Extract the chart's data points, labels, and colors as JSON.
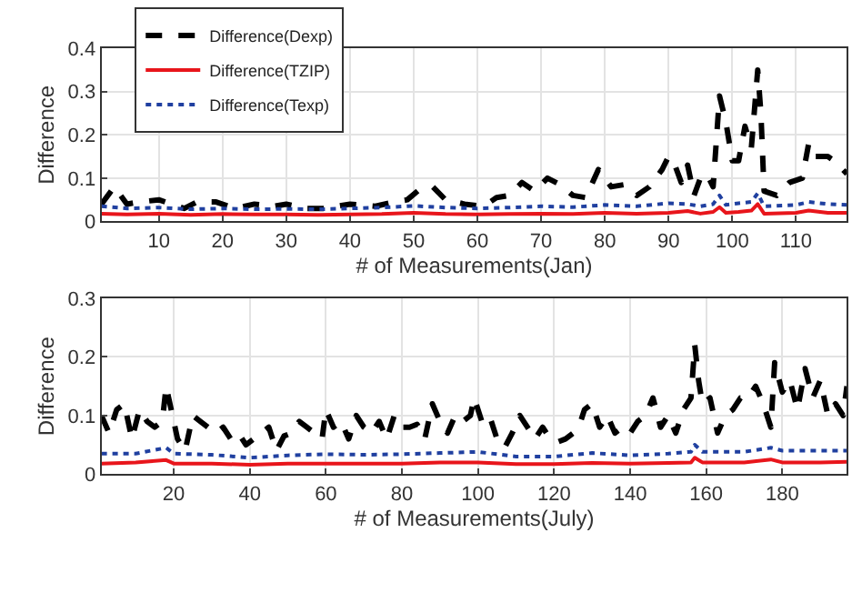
{
  "chart_data": [
    {
      "type": "line",
      "xlabel": "# of Measurements(Jan)",
      "ylabel": "Difference",
      "xlim": [
        1,
        118
      ],
      "xticks": [
        10,
        20,
        30,
        40,
        50,
        60,
        70,
        80,
        90,
        100,
        110
      ],
      "ylim": [
        0,
        0.4
      ],
      "yticks": [
        0,
        0.1,
        0.2,
        0.3,
        0.4
      ],
      "grid": true,
      "legend": "top left",
      "marker": "none",
      "series": [
        {
          "name": "Difference(Dexp)",
          "color": "#000000",
          "line_style": "dashed",
          "x": [
            1,
            3,
            5,
            7,
            10,
            12,
            14,
            16,
            19,
            22,
            25,
            28,
            30,
            33,
            36,
            40,
            44,
            47,
            49,
            51,
            53,
            55,
            58,
            61,
            63,
            65,
            67,
            69,
            71,
            73,
            75,
            77,
            79,
            81,
            83,
            85,
            87,
            89,
            90,
            91,
            92,
            93,
            94,
            95,
            96,
            97,
            98,
            99,
            100,
            101,
            102,
            103,
            104,
            104.5,
            105,
            107,
            109,
            111,
            112,
            113,
            115,
            116,
            118
          ],
          "values": [
            0.04,
            0.08,
            0.04,
            0.045,
            0.05,
            0.04,
            0.03,
            0.045,
            0.045,
            0.03,
            0.04,
            0.035,
            0.04,
            0.03,
            0.03,
            0.04,
            0.035,
            0.045,
            0.05,
            0.075,
            0.08,
            0.05,
            0.04,
            0.035,
            0.055,
            0.06,
            0.09,
            0.07,
            0.1,
            0.085,
            0.06,
            0.055,
            0.12,
            0.08,
            0.085,
            0.06,
            0.08,
            0.12,
            0.15,
            0.13,
            0.09,
            0.13,
            0.06,
            0.1,
            0.11,
            0.08,
            0.29,
            0.23,
            0.14,
            0.14,
            0.22,
            0.17,
            0.35,
            0.25,
            0.07,
            0.06,
            0.09,
            0.1,
            0.18,
            0.15,
            0.15,
            0.14,
            0.11
          ]
        },
        {
          "name": "Difference(TZIP)",
          "color": "#e8151b",
          "line_style": "solid",
          "x": [
            1,
            5,
            10,
            15,
            20,
            25,
            30,
            35,
            40,
            45,
            50,
            55,
            60,
            65,
            70,
            75,
            80,
            85,
            90,
            93,
            95,
            97,
            98,
            99,
            101,
            103,
            104,
            105,
            110,
            112,
            115,
            118
          ],
          "values": [
            0.018,
            0.016,
            0.018,
            0.015,
            0.017,
            0.016,
            0.016,
            0.015,
            0.016,
            0.017,
            0.02,
            0.017,
            0.016,
            0.017,
            0.018,
            0.017,
            0.02,
            0.018,
            0.02,
            0.024,
            0.018,
            0.022,
            0.033,
            0.02,
            0.022,
            0.025,
            0.04,
            0.018,
            0.02,
            0.025,
            0.02,
            0.02
          ]
        },
        {
          "name": "Difference(Texp)",
          "color": "#2040a0",
          "line_style": "dotted",
          "x": [
            1,
            5,
            10,
            15,
            20,
            25,
            30,
            35,
            40,
            45,
            50,
            55,
            60,
            65,
            70,
            75,
            80,
            85,
            90,
            93,
            95,
            97,
            98,
            99,
            101,
            103,
            104,
            105,
            110,
            112,
            115,
            118
          ],
          "values": [
            0.035,
            0.03,
            0.032,
            0.028,
            0.03,
            0.028,
            0.029,
            0.028,
            0.03,
            0.032,
            0.036,
            0.032,
            0.03,
            0.032,
            0.035,
            0.033,
            0.038,
            0.035,
            0.042,
            0.04,
            0.035,
            0.04,
            0.06,
            0.038,
            0.042,
            0.045,
            0.065,
            0.035,
            0.038,
            0.045,
            0.04,
            0.038
          ]
        }
      ]
    },
    {
      "type": "line",
      "xlabel": "# of Measurements(July)",
      "ylabel": "Difference",
      "xlim": [
        1,
        197
      ],
      "xticks": [
        20,
        40,
        60,
        80,
        100,
        120,
        140,
        160,
        180
      ],
      "ylim": [
        0,
        0.3
      ],
      "yticks": [
        0,
        0.1,
        0.2,
        0.3
      ],
      "grid": true,
      "marker": "none",
      "series": [
        {
          "color": "#000000",
          "line_style": "dashed",
          "x": [
            1,
            3,
            5,
            7,
            9,
            11,
            13,
            15,
            17,
            18,
            19,
            21,
            23,
            25,
            27,
            29,
            31,
            33,
            35,
            37,
            39,
            41,
            43,
            45,
            47,
            49,
            51,
            53,
            55,
            57,
            59,
            60,
            62,
            64,
            66,
            68,
            70,
            72,
            74,
            76,
            78,
            80,
            82,
            84,
            86,
            88,
            90,
            92,
            94,
            96,
            98,
            99,
            101,
            103,
            105,
            107,
            109,
            111,
            113,
            115,
            117,
            119,
            121,
            123,
            125,
            127,
            128,
            130,
            132,
            134,
            136,
            138,
            140,
            142,
            144,
            146,
            148,
            150,
            152,
            154,
            156,
            157,
            158,
            159,
            161,
            163,
            165,
            167,
            169,
            171,
            173,
            175,
            177,
            178,
            180,
            182,
            184,
            186,
            188,
            190,
            192,
            194,
            196,
            197
          ],
          "values": [
            0.1,
            0.07,
            0.11,
            0.12,
            0.06,
            0.11,
            0.09,
            0.08,
            0.09,
            0.15,
            0.12,
            0.06,
            0.04,
            0.1,
            0.09,
            0.08,
            0.07,
            0.08,
            0.06,
            0.07,
            0.05,
            0.06,
            0.07,
            0.08,
            0.04,
            0.065,
            0.07,
            0.09,
            0.08,
            0.07,
            0.06,
            0.11,
            0.08,
            0.09,
            0.06,
            0.1,
            0.08,
            0.07,
            0.09,
            0.06,
            0.1,
            0.08,
            0.08,
            0.085,
            0.06,
            0.12,
            0.09,
            0.07,
            0.1,
            0.09,
            0.1,
            0.13,
            0.09,
            0.1,
            0.06,
            0.045,
            0.07,
            0.1,
            0.08,
            0.06,
            0.08,
            0.06,
            0.055,
            0.06,
            0.07,
            0.09,
            0.11,
            0.12,
            0.08,
            0.1,
            0.07,
            0.08,
            0.07,
            0.09,
            0.1,
            0.13,
            0.08,
            0.1,
            0.07,
            0.11,
            0.13,
            0.22,
            0.16,
            0.12,
            0.13,
            0.07,
            0.1,
            0.11,
            0.13,
            0.13,
            0.15,
            0.12,
            0.08,
            0.19,
            0.14,
            0.16,
            0.11,
            0.18,
            0.13,
            0.16,
            0.1,
            0.12,
            0.1,
            0.15
          ]
        },
        {
          "color": "#e8151b",
          "line_style": "solid",
          "x": [
            1,
            10,
            18,
            20,
            30,
            40,
            50,
            60,
            70,
            80,
            90,
            100,
            110,
            120,
            130,
            140,
            150,
            156,
            157,
            159,
            170,
            177,
            180,
            190,
            197
          ],
          "values": [
            0.018,
            0.02,
            0.024,
            0.018,
            0.018,
            0.016,
            0.018,
            0.018,
            0.018,
            0.018,
            0.02,
            0.02,
            0.017,
            0.017,
            0.019,
            0.018,
            0.019,
            0.02,
            0.028,
            0.02,
            0.02,
            0.025,
            0.02,
            0.02,
            0.021
          ]
        },
        {
          "color": "#2040a0",
          "line_style": "dotted",
          "x": [
            1,
            10,
            18,
            20,
            30,
            40,
            50,
            60,
            70,
            80,
            90,
            100,
            110,
            120,
            130,
            140,
            150,
            156,
            157,
            159,
            170,
            177,
            180,
            190,
            197
          ],
          "values": [
            0.035,
            0.035,
            0.045,
            0.035,
            0.033,
            0.028,
            0.032,
            0.034,
            0.033,
            0.034,
            0.036,
            0.038,
            0.03,
            0.03,
            0.036,
            0.032,
            0.035,
            0.038,
            0.05,
            0.038,
            0.038,
            0.045,
            0.04,
            0.04,
            0.04
          ]
        }
      ]
    }
  ]
}
